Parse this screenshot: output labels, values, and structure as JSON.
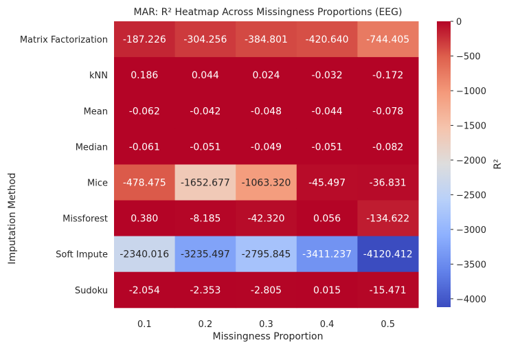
{
  "chart_data": {
    "type": "heatmap",
    "title": "MAR: R² Heatmap Across Missingness Proportions (EEG)",
    "xlabel": "Missingness Proportion",
    "ylabel": "Imputation Method",
    "x_categories": [
      "0.1",
      "0.2",
      "0.3",
      "0.4",
      "0.5"
    ],
    "y_categories": [
      "Matrix Factorization",
      "kNN",
      "Mean",
      "Median",
      "Mice",
      "Missforest",
      "Soft Impute",
      "Sudoku"
    ],
    "values": [
      [
        -187.226,
        -304.256,
        -384.801,
        -420.64,
        -744.405
      ],
      [
        0.186,
        0.044,
        0.024,
        -0.032,
        -0.172
      ],
      [
        -0.062,
        -0.042,
        -0.048,
        -0.044,
        -0.078
      ],
      [
        -0.061,
        -0.051,
        -0.049,
        -0.051,
        -0.082
      ],
      [
        -478.475,
        -1652.677,
        -1063.32,
        -45.497,
        -36.831
      ],
      [
        0.38,
        -8.185,
        -42.32,
        0.056,
        -134.622
      ],
      [
        -2340.016,
        -3235.497,
        -2795.845,
        -3411.237,
        -4120.412
      ],
      [
        -2.054,
        -2.353,
        -2.805,
        0.015,
        -15.471
      ]
    ],
    "value_labels": [
      [
        "-187.226",
        "-304.256",
        "-384.801",
        "-420.640",
        "-744.405"
      ],
      [
        "0.186",
        "0.044",
        "0.024",
        "-0.032",
        "-0.172"
      ],
      [
        "-0.062",
        "-0.042",
        "-0.048",
        "-0.044",
        "-0.078"
      ],
      [
        "-0.061",
        "-0.051",
        "-0.049",
        "-0.051",
        "-0.082"
      ],
      [
        "-478.475",
        "-1652.677",
        "-1063.320",
        "-45.497",
        "-36.831"
      ],
      [
        "0.380",
        "-8.185",
        "-42.320",
        "0.056",
        "-134.622"
      ],
      [
        "-2340.016",
        "-3235.497",
        "-2795.845",
        "-3411.237",
        "-4120.412"
      ],
      [
        "-2.054",
        "-2.353",
        "-2.805",
        "0.015",
        "-15.471"
      ]
    ],
    "colorbar": {
      "label": "R²",
      "colormap": "coolwarm",
      "vmin": -4120.412,
      "vmax": 0.38,
      "ticks": [
        0,
        -500,
        -1000,
        -1500,
        -2000,
        -2500,
        -3000,
        -3500,
        -4000
      ],
      "tick_labels": [
        "0",
        "−500",
        "−1000",
        "−1500",
        "−2000",
        "−2500",
        "−3000",
        "−3500",
        "−4000"
      ]
    },
    "grid": false
  }
}
